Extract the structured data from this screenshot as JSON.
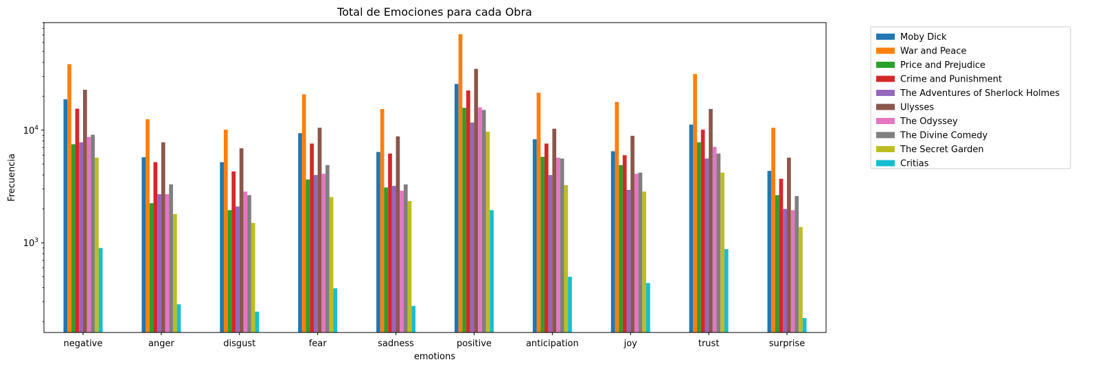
{
  "chart_data": {
    "type": "bar",
    "title": "Total de Emociones para cada Obra",
    "xlabel": "emotions",
    "ylabel": "Frecuencia",
    "yscale": "log",
    "ylim": [
      160,
      90000
    ],
    "y_ticks": [
      {
        "value": 1000,
        "base": "10",
        "exp": "3"
      },
      {
        "value": 10000,
        "base": "10",
        "exp": "4"
      }
    ],
    "legend_position": "outside-right",
    "categories": [
      "negative",
      "anger",
      "disgust",
      "fear",
      "sadness",
      "positive",
      "anticipation",
      "joy",
      "trust",
      "surprise"
    ],
    "series": [
      {
        "name": "Moby Dick",
        "color": "#1f77b4",
        "values": [
          18800,
          5750,
          5200,
          9400,
          6400,
          25700,
          8300,
          6500,
          11200,
          4350
        ]
      },
      {
        "name": "War and Peace",
        "color": "#ff7f0e",
        "values": [
          38500,
          12500,
          10100,
          20800,
          15400,
          71000,
          21500,
          17800,
          31500,
          10500
        ]
      },
      {
        "name": "Price and Prejudice",
        "color": "#2ca02c",
        "values": [
          7500,
          2250,
          1950,
          3650,
          3100,
          15800,
          5800,
          4900,
          7800,
          2650
        ]
      },
      {
        "name": "Crime and Punishment",
        "color": "#d62728",
        "values": [
          15500,
          5200,
          4300,
          7600,
          6200,
          22500,
          7600,
          6000,
          10100,
          3700
        ]
      },
      {
        "name": "The Adventures of Sherlock Holmes",
        "color": "#9467bd",
        "values": [
          7800,
          2700,
          2100,
          4000,
          3200,
          11700,
          4000,
          2950,
          5600,
          2000
        ]
      },
      {
        "name": "Ulysses",
        "color": "#8c564b",
        "values": [
          22800,
          7800,
          6900,
          10500,
          8800,
          35000,
          10300,
          8900,
          15400,
          5700
        ]
      },
      {
        "name": "The Odyssey",
        "color": "#e377c2",
        "values": [
          8700,
          2700,
          2850,
          4100,
          2900,
          15900,
          5700,
          4100,
          7100,
          1950
        ]
      },
      {
        "name": "The Divine Comedy",
        "color": "#7f7f7f",
        "values": [
          9100,
          3300,
          2650,
          4900,
          3300,
          15100,
          5600,
          4200,
          6200,
          2600
        ]
      },
      {
        "name": "The Secret Garden",
        "color": "#bcbd22",
        "values": [
          5700,
          1800,
          1500,
          2550,
          2350,
          9700,
          3250,
          2850,
          4200,
          1380
        ]
      },
      {
        "name": "Critias",
        "color": "#17becf",
        "values": [
          900,
          285,
          245,
          395,
          275,
          1950,
          500,
          440,
          880,
          215
        ]
      }
    ]
  }
}
